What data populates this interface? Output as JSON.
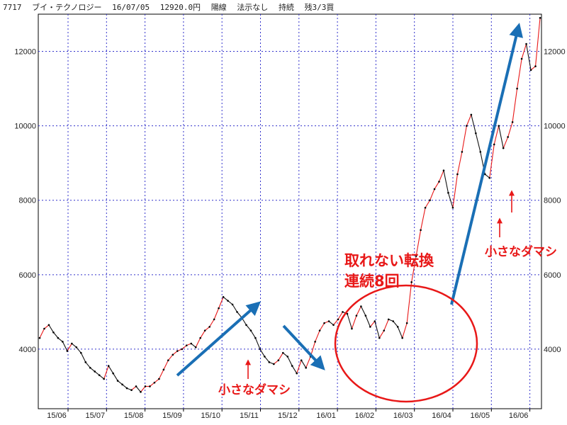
{
  "header": {
    "code": "7717",
    "name": "ブイ・テクノロジー",
    "date": "16/07/05",
    "price": "12920.0円",
    "candle": "陽線",
    "flag": "法示なし",
    "status": "持続",
    "remain": "残3/3買"
  },
  "colors": {
    "grid": "#3333cc",
    "up": "#e81818",
    "down": "#111111",
    "arrow": "#1a6fb5",
    "annotation": "#e81818"
  },
  "chart_data": {
    "type": "line",
    "title": "",
    "xlabel": "",
    "ylabel": "",
    "ylim": [
      2400,
      13000
    ],
    "y_ticks": [
      4000,
      6000,
      8000,
      10000,
      12000
    ],
    "y_tick_labels": [
      "4000",
      "6000",
      "8000",
      "10000",
      "12000"
    ],
    "x_tick_labels": [
      "15/06",
      "15/07",
      "15/08",
      "15/09",
      "15/10",
      "15/11",
      "15/12",
      "16/01",
      "16/02",
      "16/03",
      "16/04",
      "16/05",
      "16/06"
    ],
    "grid": true,
    "series": [
      {
        "values": [
          4300,
          4550,
          4650,
          4450,
          4300,
          4200,
          3950,
          4150,
          4050,
          3900,
          3650,
          3500,
          3400,
          3300,
          3200,
          3550,
          3350,
          3150,
          3050,
          2950,
          2900,
          3000,
          2850,
          3000,
          3000,
          3100,
          3200,
          3450,
          3700,
          3850,
          3950,
          4000,
          4100,
          4150,
          4050,
          4300,
          4500,
          4600,
          4800,
          5100,
          5400,
          5300,
          5200,
          5000,
          4850,
          4650,
          4500,
          4300,
          4000,
          3800,
          3650,
          3600,
          3700,
          3900,
          3800,
          3550,
          3350,
          3700,
          3500,
          3800,
          4200,
          4500,
          4700,
          4750,
          4650,
          4800,
          5000,
          4950,
          4550,
          4900,
          5150,
          4900,
          4600,
          4750,
          4300,
          4500,
          4800,
          4750,
          4600,
          4300,
          4700,
          5800,
          6500,
          7200,
          7800,
          8000,
          8300,
          8500,
          8800,
          8200,
          7800,
          8700,
          9300,
          10000,
          10300,
          9800,
          9300,
          8700,
          8600,
          9500,
          10000,
          9400,
          9700,
          10100,
          11000,
          11800,
          12200,
          11500,
          11600,
          12900
        ]
      }
    ],
    "annotations": {
      "arrow_labels": [
        "小さなダマシ",
        "小さなダマシ"
      ],
      "bubble_title": "取れない転換",
      "bubble_sub": "連続8回"
    }
  }
}
